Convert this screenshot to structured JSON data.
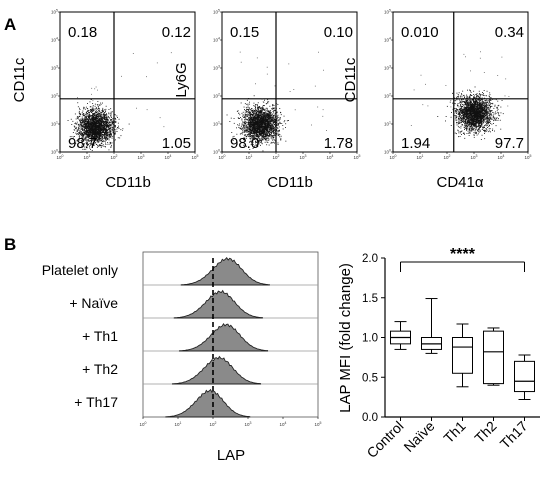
{
  "panels": {
    "A": "A",
    "B": "B"
  },
  "chart_data": [
    {
      "type": "scatter",
      "panel": "A",
      "xlabel": "CD11b",
      "ylabel": "CD11c",
      "axis_ticks": [
        "10^0",
        "10^1",
        "10^2",
        "10^3",
        "10^4",
        "10^5"
      ],
      "quadrants": {
        "top_left": "0.18",
        "top_right": "0.12",
        "bottom_left": "98.7",
        "bottom_right": "1.05"
      },
      "cluster": {
        "x_log": 1.3,
        "y_log": 0.9,
        "spread": "dense"
      }
    },
    {
      "type": "scatter",
      "panel": "A",
      "xlabel": "CD11b",
      "ylabel": "Ly6G",
      "axis_ticks": [
        "10^0",
        "10^1",
        "10^2",
        "10^3",
        "10^4",
        "10^5"
      ],
      "quadrants": {
        "top_left": "0.15",
        "top_right": "0.10",
        "bottom_left": "98.0",
        "bottom_right": "1.78"
      },
      "cluster": {
        "x_log": 1.4,
        "y_log": 1.0,
        "spread": "dense"
      }
    },
    {
      "type": "scatter",
      "panel": "A",
      "xlabel": "CD41α",
      "ylabel": "CD11c",
      "axis_ticks": [
        "10^0",
        "10^1",
        "10^2",
        "10^3",
        "10^4",
        "10^5"
      ],
      "quadrants": {
        "top_left": "0.010",
        "top_right": "0.34",
        "bottom_left": "1.94",
        "bottom_right": "97.7"
      },
      "cluster": {
        "x_log": 3.0,
        "y_log": 1.4,
        "spread": "dense"
      }
    },
    {
      "type": "area",
      "panel": "B",
      "subtype": "stacked histograms",
      "xlabel": "LAP",
      "axis_ticks": [
        "10^0",
        "10^1",
        "10^2",
        "10^3",
        "10^4",
        "10^5"
      ],
      "reference_line_log": 2.0,
      "series": [
        {
          "name": "Platelet only",
          "peak_log": 2.35,
          "width": 0.42
        },
        {
          "name": "+ Naïve",
          "peak_log": 2.15,
          "width": 0.42
        },
        {
          "name": "+ Th1",
          "peak_log": 2.3,
          "width": 0.42
        },
        {
          "name": "+ Th2",
          "peak_log": 2.1,
          "width": 0.42
        },
        {
          "name": "+ Th17",
          "peak_log": 1.85,
          "width": 0.4
        }
      ]
    },
    {
      "type": "box",
      "panel": "B",
      "ylabel": "LAP MFI (fold change)",
      "ylim": [
        0,
        2.0
      ],
      "yticks": [
        "0.0",
        "0.5",
        "1.0",
        "1.5",
        "2.0"
      ],
      "significance": "****",
      "categories": [
        "Control",
        "Naïve",
        "Th1",
        "Th2",
        "Th17"
      ],
      "boxes": [
        {
          "min": 0.85,
          "q1": 0.92,
          "median": 1.0,
          "q3": 1.08,
          "max": 1.2
        },
        {
          "min": 0.8,
          "q1": 0.85,
          "median": 0.92,
          "q3": 1.0,
          "max": 1.49
        },
        {
          "min": 0.38,
          "q1": 0.55,
          "median": 0.88,
          "q3": 1.0,
          "max": 1.17
        },
        {
          "min": 0.4,
          "q1": 0.42,
          "median": 0.82,
          "q3": 1.08,
          "max": 1.12
        },
        {
          "min": 0.22,
          "q1": 0.32,
          "median": 0.45,
          "q3": 0.7,
          "max": 0.78
        }
      ]
    }
  ]
}
